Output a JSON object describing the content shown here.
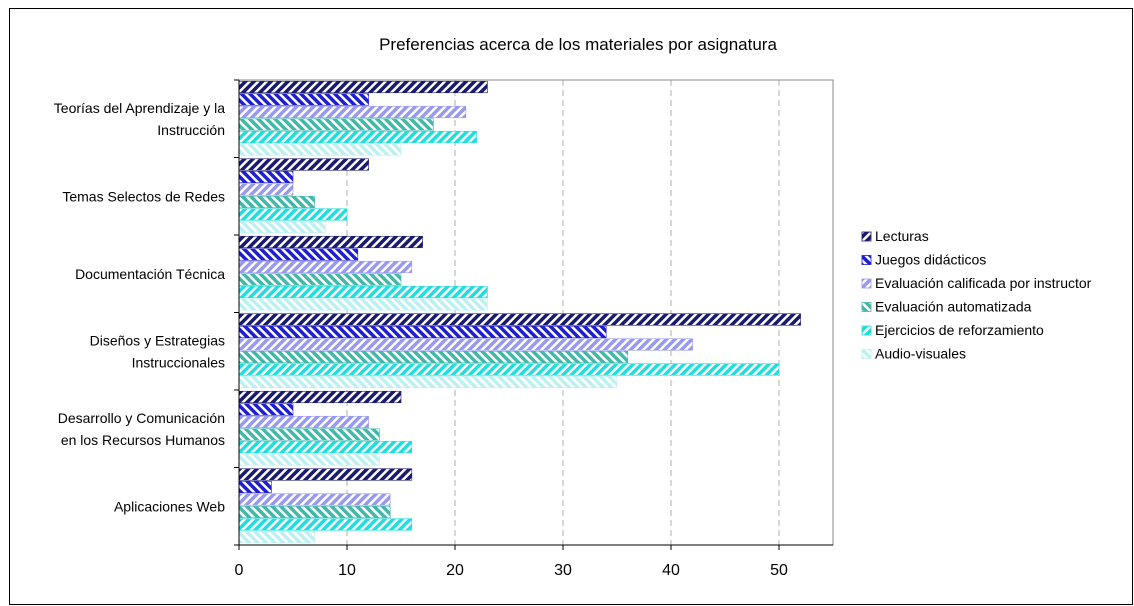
{
  "chart_data": {
    "type": "bar",
    "orientation": "horizontal",
    "title": "Preferencias acerca de los materiales por asignatura",
    "xlabel": "",
    "ylabel": "",
    "xlim": [
      0,
      55
    ],
    "xticks": [
      0,
      10,
      20,
      30,
      40,
      50
    ],
    "grid": "vertical-dashed",
    "legend": "right",
    "categories": [
      [
        "Teorías del Aprendizaje y la",
        "Instrucción"
      ],
      [
        "Temas Selectos de Redes"
      ],
      [
        "Documentación Técnica"
      ],
      [
        "Diseños y Estrategias",
        "Instruccionales"
      ],
      [
        "Desarrollo y Comunicación",
        "en los Recursos Humanos"
      ],
      [
        "Aplicaciones Web"
      ]
    ],
    "series": [
      {
        "name": "Lecturas",
        "color": "#1a1a6e",
        "values": [
          23,
          12,
          17,
          52,
          15,
          16
        ]
      },
      {
        "name": "Juegos didácticos",
        "color": "#1f1fd0",
        "values": [
          12,
          5,
          11,
          34,
          5,
          3
        ]
      },
      {
        "name": "Evaluación calificada por instructor",
        "color": "#9999ee",
        "values": [
          21,
          5,
          16,
          42,
          12,
          14
        ]
      },
      {
        "name": "Evaluación automatizada",
        "color": "#44b8a8",
        "values": [
          18,
          7,
          15,
          36,
          13,
          14
        ]
      },
      {
        "name": "Ejercicios de reforzamiento",
        "color": "#22dddd",
        "values": [
          22,
          10,
          23,
          50,
          16,
          16
        ]
      },
      {
        "name": "Audio-visuales",
        "color": "#bdf0f0",
        "values": [
          15,
          8,
          23,
          35,
          13,
          7
        ]
      }
    ]
  }
}
